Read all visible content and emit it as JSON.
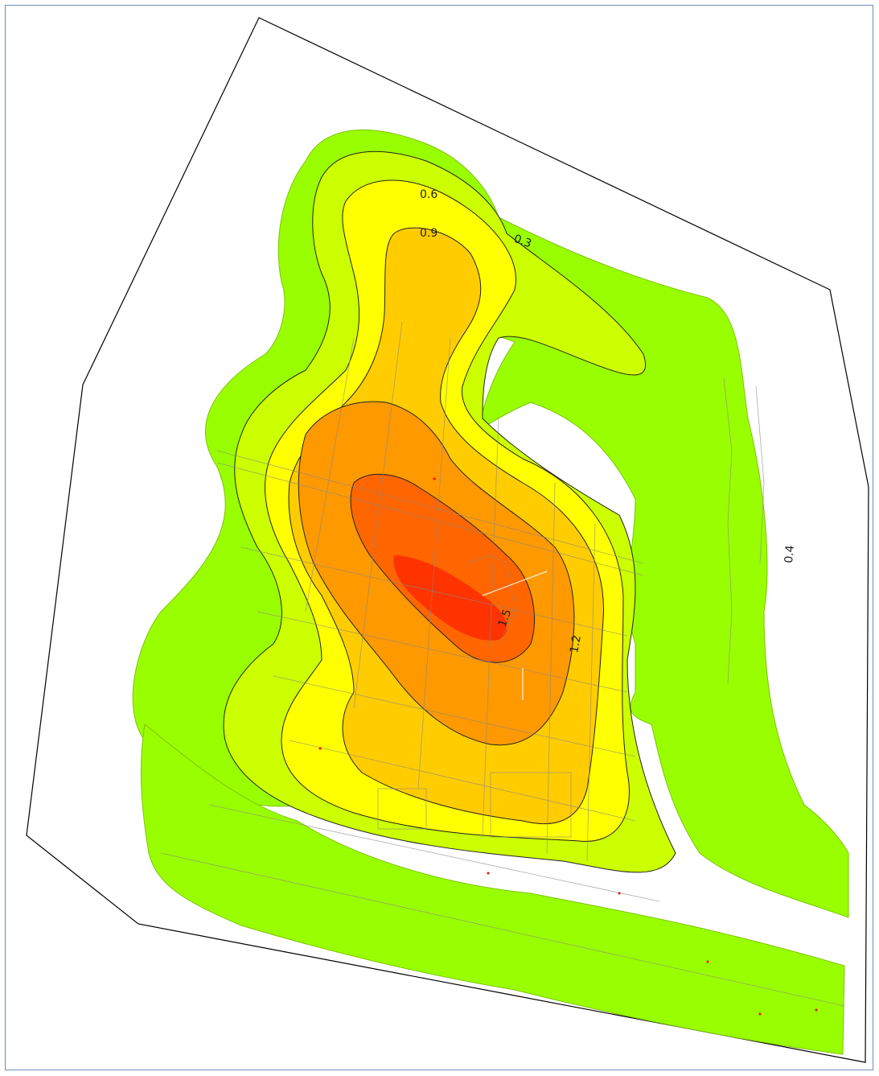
{
  "map": {
    "contour_labels": [
      {
        "text": "0.6"
      },
      {
        "text": "0.9"
      },
      {
        "text": "0.3"
      },
      {
        "text": "1.5"
      },
      {
        "text": "1.2"
      },
      {
        "text": "0.4"
      }
    ],
    "colors": {
      "level_1": "#99ff00",
      "level_2": "#ccff00",
      "level_3": "#ffff00",
      "level_4": "#ffcc00",
      "level_5": "#ff9900",
      "level_6": "#ff6600",
      "level_7": "#ff3300",
      "background": "#ffffff",
      "boundary": "#000000",
      "frame_border": "#6f8fb4"
    }
  }
}
